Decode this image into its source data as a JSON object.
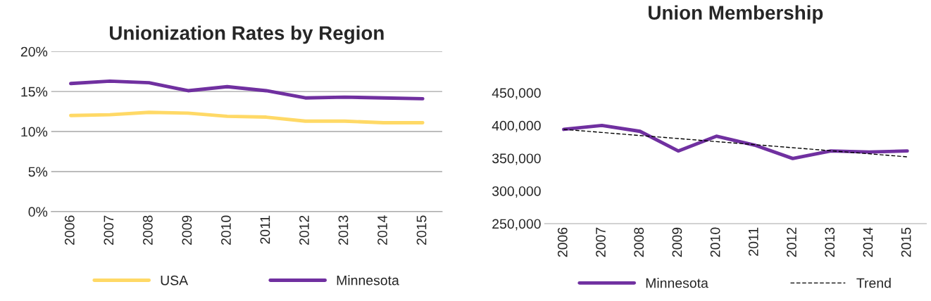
{
  "chart_data": [
    {
      "type": "line",
      "title": "Unionization Rates by Region",
      "categories": [
        "2006",
        "2007",
        "2008",
        "2009",
        "2010",
        "2011",
        "2012",
        "2013",
        "2014",
        "2015"
      ],
      "series": [
        {
          "name": "USA",
          "color": "#ffd966",
          "values": [
            12.0,
            12.1,
            12.4,
            12.3,
            11.9,
            11.8,
            11.3,
            11.3,
            11.1,
            11.1
          ]
        },
        {
          "name": "Minnesota",
          "color": "#7030a0",
          "values": [
            16.0,
            16.3,
            16.1,
            15.1,
            15.6,
            15.1,
            14.2,
            14.3,
            14.2,
            14.1
          ]
        }
      ],
      "ylim": [
        0,
        20
      ],
      "yticks": [
        {
          "value": 0,
          "label": "0%"
        },
        {
          "value": 5,
          "label": "5%"
        },
        {
          "value": 10,
          "label": "10%"
        },
        {
          "value": 15,
          "label": "15%"
        },
        {
          "value": 20,
          "label": "20%"
        }
      ],
      "grid": "y",
      "legend": "bottom",
      "marker": "none",
      "line_style": "solid"
    },
    {
      "type": "line",
      "title": "Union Membership",
      "categories": [
        "2006",
        "2007",
        "2008",
        "2009",
        "2010",
        "2011",
        "2012",
        "2013",
        "2014",
        "2015"
      ],
      "series": [
        {
          "name": "Minnesota",
          "color": "#7030a0",
          "values": [
            394000,
            400000,
            391000,
            361000,
            383500,
            370000,
            349500,
            361000,
            359500,
            361000
          ]
        },
        {
          "name": "Trend",
          "color": "#000000",
          "line_style": "dashed",
          "values": [
            394000,
            389300,
            384600,
            380000,
            375300,
            370700,
            366000,
            361300,
            356700,
            352000
          ]
        }
      ],
      "ylim": [
        250000,
        450000
      ],
      "yticks": [
        {
          "value": 250000,
          "label": "250,000"
        },
        {
          "value": 300000,
          "label": "300,000"
        },
        {
          "value": 350000,
          "label": "350,000"
        },
        {
          "value": 400000,
          "label": "400,000"
        },
        {
          "value": 450000,
          "label": "450,000"
        }
      ],
      "grid": false,
      "legend": "bottom",
      "marker": "none",
      "line_style": "solid"
    }
  ]
}
